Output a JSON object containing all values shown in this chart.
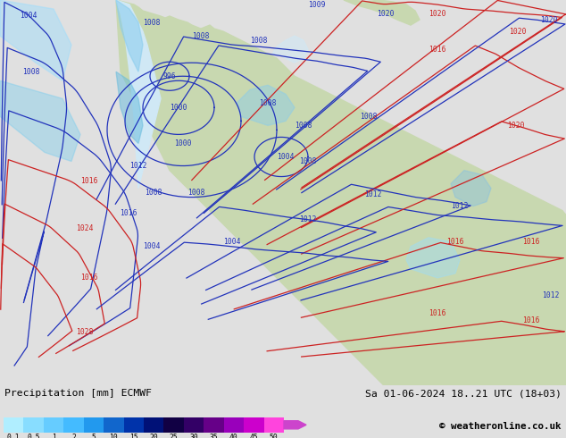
{
  "title_left": "Precipitation [mm] ECMWF",
  "title_right": "Sa 01-06-2024 18..21 UTC (18+03)",
  "copyright": "© weatheronline.co.uk",
  "colorbar_levels": [
    "0.1",
    "0.5",
    "1",
    "2",
    "5",
    "10",
    "15",
    "20",
    "25",
    "30",
    "35",
    "40",
    "45",
    "50"
  ],
  "colorbar_colors": [
    "#b0eeff",
    "#88ddff",
    "#66ccff",
    "#44bbff",
    "#2299ee",
    "#1166cc",
    "#0033aa",
    "#001177",
    "#110044",
    "#330066",
    "#660088",
    "#9900bb",
    "#cc00cc",
    "#ff44dd"
  ],
  "blue_contour_color": "#2233bb",
  "red_contour_color": "#cc2222",
  "land_color": "#c8d8b0",
  "ocean_color": "#d0e8f5",
  "fig_bg": "#e0e0e0",
  "bottom_bg": "#ffffff"
}
